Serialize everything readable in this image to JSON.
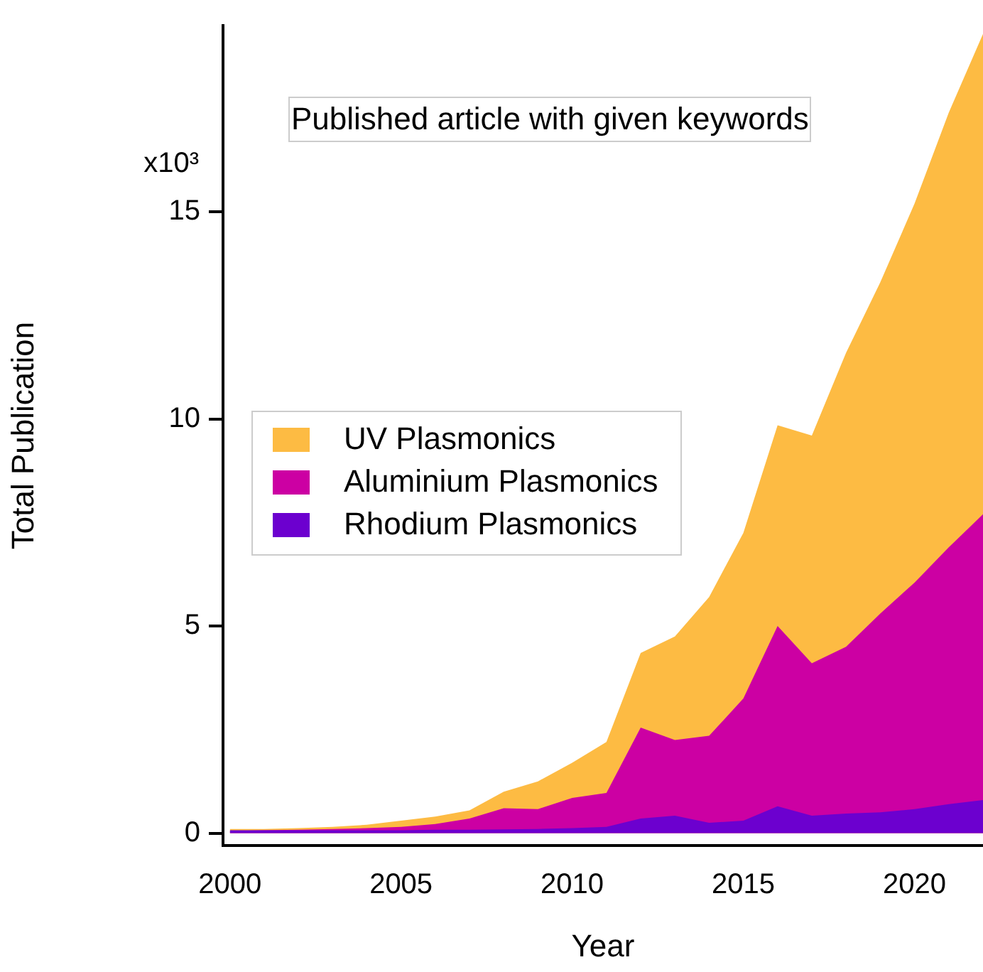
{
  "chart_data": {
    "type": "area",
    "title": "Published article with given keywords",
    "xlabel": "Year",
    "ylabel": "Total Publication",
    "annotations": [
      "x10³"
    ],
    "x": [
      2000,
      2001,
      2002,
      2003,
      2004,
      2005,
      2006,
      2007,
      2008,
      2009,
      2010,
      2011,
      2012,
      2013,
      2014,
      2015,
      2016,
      2017,
      2018,
      2019,
      2020,
      2021,
      2022
    ],
    "series": [
      {
        "name": "UV Plasmonics",
        "color": "#fdbb43",
        "values": [
          0.1,
          0.1,
          0.12,
          0.15,
          0.2,
          0.3,
          0.4,
          0.55,
          1.0,
          1.25,
          1.7,
          2.2,
          4.35,
          4.75,
          5.7,
          7.25,
          9.85,
          9.6,
          11.6,
          13.3,
          15.2,
          17.4,
          19.3
        ]
      },
      {
        "name": "Aluminium Plasmonics",
        "color": "#cc00a3",
        "values": [
          0.05,
          0.07,
          0.08,
          0.1,
          0.12,
          0.15,
          0.22,
          0.35,
          0.6,
          0.58,
          0.85,
          0.97,
          2.55,
          2.25,
          2.35,
          3.25,
          5.0,
          4.1,
          4.5,
          5.3,
          6.05,
          6.9,
          7.7
        ]
      },
      {
        "name": "Rhodium Plasmonics",
        "color": "#6c00cf",
        "values": [
          0.07,
          0.07,
          0.07,
          0.07,
          0.07,
          0.07,
          0.08,
          0.08,
          0.09,
          0.1,
          0.12,
          0.15,
          0.35,
          0.42,
          0.25,
          0.3,
          0.65,
          0.42,
          0.47,
          0.5,
          0.58,
          0.7,
          0.8
        ]
      }
    ],
    "xlim": [
      1999.8,
      2022
    ],
    "xticks": [
      2000,
      2005,
      2010,
      2015,
      2020
    ],
    "ylim": [
      -0.3,
      19.5
    ],
    "yticks": [
      0,
      5,
      10,
      15
    ],
    "legend": "center left",
    "grid": false
  }
}
